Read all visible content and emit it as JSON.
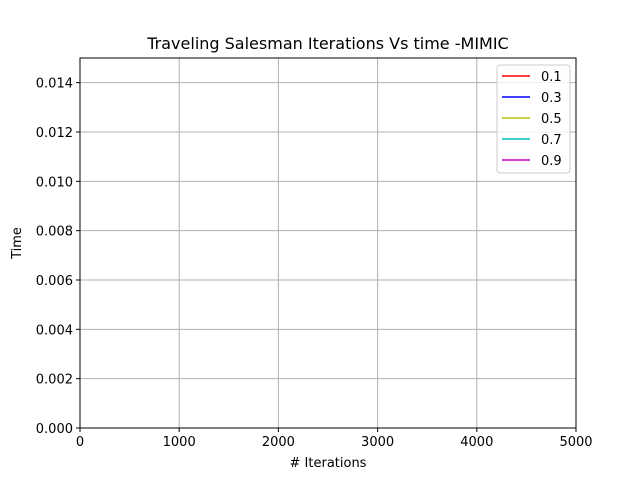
{
  "chart_data": {
    "type": "line",
    "title": "Traveling Salesman Iterations Vs time -MIMIC",
    "xlabel": "# Iterations",
    "ylabel": "Time",
    "xlim": [
      0,
      5000
    ],
    "ylim": [
      0,
      0.015
    ],
    "x_ticks": [
      "0",
      "1000",
      "2000",
      "3000",
      "4000",
      "5000"
    ],
    "y_ticks": [
      "0.000",
      "0.002",
      "0.004",
      "0.006",
      "0.008",
      "0.010",
      "0.012",
      "0.014"
    ],
    "grid": true,
    "legend_position": "top-right",
    "series": [
      {
        "name": "0.1",
        "color": "#ff0000",
        "x": [],
        "y": []
      },
      {
        "name": "0.3",
        "color": "#0000ff",
        "x": [],
        "y": []
      },
      {
        "name": "0.5",
        "color": "#bfbf00",
        "x": [],
        "y": []
      },
      {
        "name": "0.7",
        "color": "#00bfbf",
        "x": [],
        "y": []
      },
      {
        "name": "0.9",
        "color": "#bf00bf",
        "x": [],
        "y": []
      }
    ]
  }
}
